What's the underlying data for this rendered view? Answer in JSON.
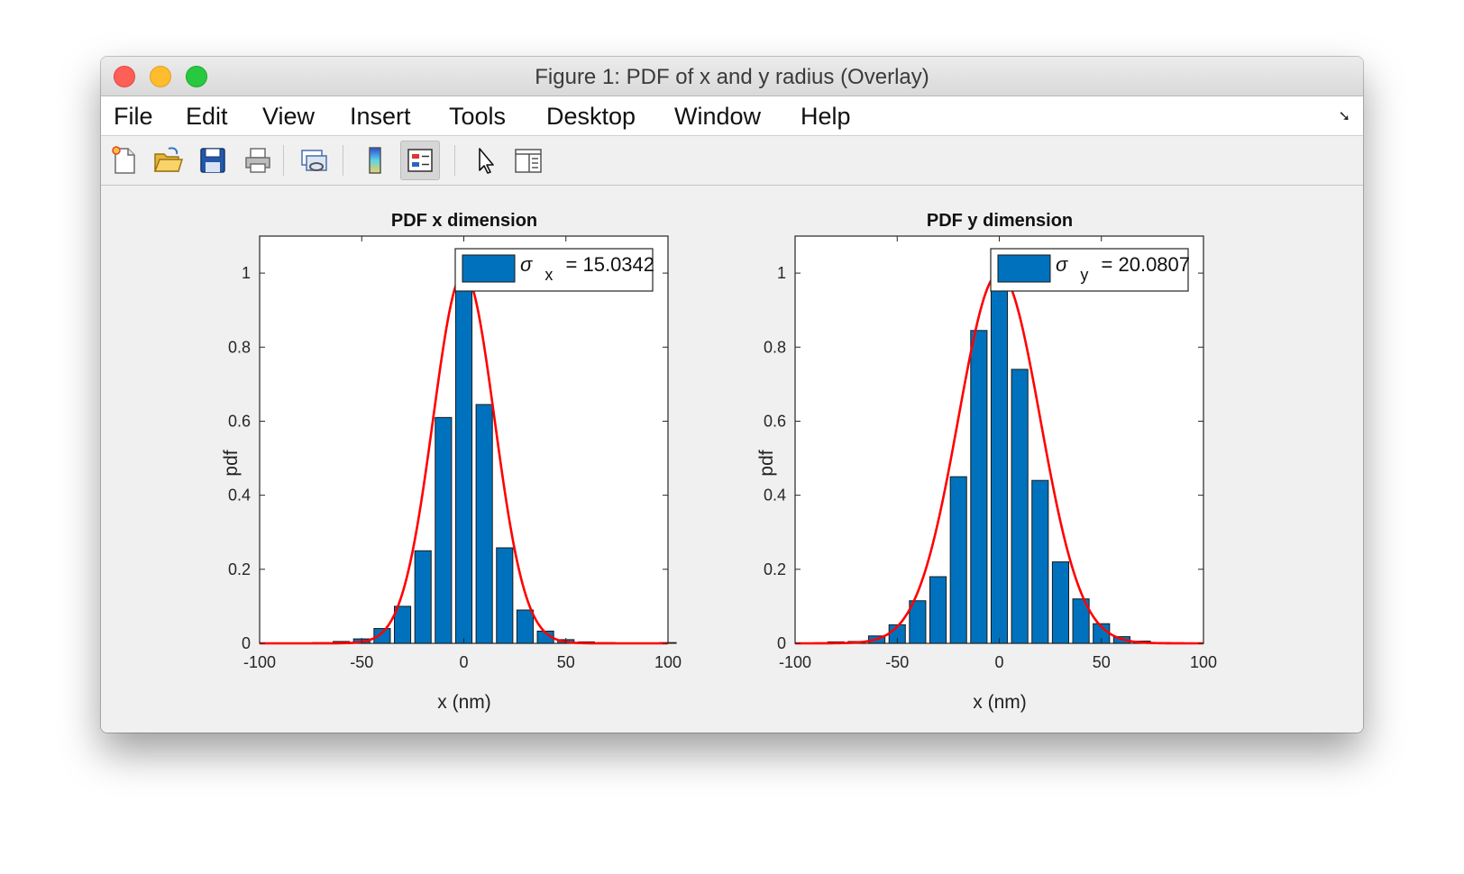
{
  "window": {
    "title": "Figure 1: PDF of x and y radius (Overlay)"
  },
  "menu": {
    "items": [
      "File",
      "Edit",
      "View",
      "Insert",
      "Tools",
      "Desktop",
      "Window",
      "Help"
    ]
  },
  "toolbar": {
    "buttons": [
      "new-figure-icon",
      "open-file-icon",
      "save-icon",
      "print-icon",
      "link-plot-icon",
      "colorbar-icon",
      "legend-icon",
      "pointer-icon",
      "property-inspector-icon"
    ],
    "active": "legend-icon"
  },
  "colors": {
    "bar": "#0072bd",
    "fit": "#ff0000",
    "axes_bg": "#ffffff",
    "figure_bg": "#f0f0f0"
  },
  "chart_data": [
    {
      "type": "bar",
      "title": "PDF x dimension",
      "xlabel": "x (nm)",
      "ylabel": "pdf",
      "xlim": [
        -100,
        100
      ],
      "ylim": [
        0,
        1.1
      ],
      "xticks": [
        "-100",
        "-50",
        "0",
        "50",
        "100"
      ],
      "yticks": [
        "0",
        "0.2",
        "0.4",
        "0.6",
        "0.8",
        "1"
      ],
      "legend": {
        "symbol": "σ",
        "subscript": "x",
        "text": "= 15.0342",
        "position": "top-right"
      },
      "bin_width": 10,
      "bins": [
        {
          "x": -70,
          "y": 0.002
        },
        {
          "x": -60,
          "y": 0.005
        },
        {
          "x": -50,
          "y": 0.012
        },
        {
          "x": -40,
          "y": 0.04
        },
        {
          "x": -30,
          "y": 0.1
        },
        {
          "x": -20,
          "y": 0.25
        },
        {
          "x": -10,
          "y": 0.61
        },
        {
          "x": 0,
          "y": 1.0
        },
        {
          "x": 10,
          "y": 0.645
        },
        {
          "x": 20,
          "y": 0.258
        },
        {
          "x": 30,
          "y": 0.09
        },
        {
          "x": 40,
          "y": 0.033
        },
        {
          "x": 50,
          "y": 0.01
        },
        {
          "x": 60,
          "y": 0.004
        },
        {
          "x": 70,
          "y": 0.002
        },
        {
          "x": 80,
          "y": 0.001
        },
        {
          "x": 90,
          "y": 0.001
        },
        {
          "x": 100,
          "y": 0.002
        }
      ],
      "fit": {
        "type": "gaussian",
        "mu": 0,
        "sigma": 15.0342,
        "peak": 1.0
      }
    },
    {
      "type": "bar",
      "title": "PDF y dimension",
      "xlabel": "x (nm)",
      "ylabel": "pdf",
      "xlim": [
        -100,
        100
      ],
      "ylim": [
        0,
        1.1
      ],
      "xticks": [
        "-100",
        "-50",
        "0",
        "50",
        "100"
      ],
      "yticks": [
        "0",
        "0.2",
        "0.4",
        "0.6",
        "0.8",
        "1"
      ],
      "legend": {
        "symbol": "σ",
        "subscript": "y",
        "text": "= 20.0807",
        "position": "top-right"
      },
      "bin_width": 10,
      "bins": [
        {
          "x": -90,
          "y": 0.001
        },
        {
          "x": -80,
          "y": 0.004
        },
        {
          "x": -70,
          "y": 0.005
        },
        {
          "x": -60,
          "y": 0.02
        },
        {
          "x": -50,
          "y": 0.05
        },
        {
          "x": -40,
          "y": 0.115
        },
        {
          "x": -30,
          "y": 0.18
        },
        {
          "x": -20,
          "y": 0.45
        },
        {
          "x": -10,
          "y": 0.845
        },
        {
          "x": 0,
          "y": 1.0
        },
        {
          "x": 10,
          "y": 0.74
        },
        {
          "x": 20,
          "y": 0.44
        },
        {
          "x": 30,
          "y": 0.22
        },
        {
          "x": 40,
          "y": 0.12
        },
        {
          "x": 50,
          "y": 0.053
        },
        {
          "x": 60,
          "y": 0.018
        },
        {
          "x": 70,
          "y": 0.006
        },
        {
          "x": 80,
          "y": 0.002
        },
        {
          "x": 90,
          "y": 0.001
        }
      ],
      "fit": {
        "type": "gaussian",
        "mu": 0,
        "sigma": 20.0807,
        "peak": 1.0
      }
    }
  ]
}
